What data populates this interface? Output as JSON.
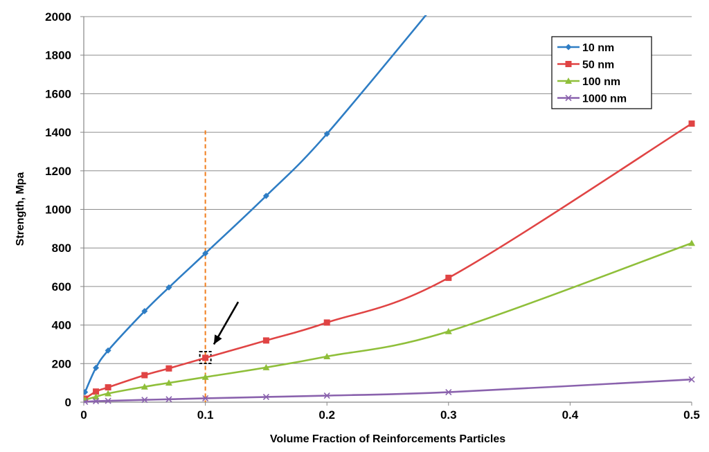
{
  "chart_data": {
    "type": "line",
    "title": "",
    "xlabel": "Volume Fraction of Reinforcements Particles",
    "ylabel": "Strength, Mpa",
    "xlim": [
      0,
      0.5
    ],
    "ylim": [
      0,
      2000
    ],
    "x_ticks": [
      0,
      0.1,
      0.2,
      0.3,
      0.4,
      0.5
    ],
    "x_tick_labels": [
      "0",
      "0.1",
      "0.2",
      "0.3",
      "0.4",
      "0.5"
    ],
    "y_ticks": [
      0,
      200,
      400,
      600,
      800,
      1000,
      1200,
      1400,
      1600,
      1800,
      2000
    ],
    "y_tick_labels": [
      "0",
      "200",
      "400",
      "600",
      "800",
      "1000",
      "1200",
      "1400",
      "1600",
      "1800",
      "2000"
    ],
    "grid": "horizontal",
    "legend_position": "top-right",
    "series": [
      {
        "name": "10 nm",
        "color": "#2e7dc4",
        "marker": "diamond",
        "x": [
          0.001,
          0.01,
          0.02,
          0.05,
          0.07,
          0.1,
          0.15,
          0.2,
          0.3
        ],
        "y": [
          52,
          178,
          268,
          472,
          595,
          772,
          1070,
          1392,
          2150
        ]
      },
      {
        "name": "50 nm",
        "color": "#e04444",
        "marker": "square",
        "x": [
          0.001,
          0.01,
          0.02,
          0.05,
          0.07,
          0.1,
          0.15,
          0.2,
          0.3,
          0.5
        ],
        "y": [
          18,
          55,
          77,
          140,
          175,
          230,
          320,
          413,
          645,
          1445
        ]
      },
      {
        "name": "100 nm",
        "color": "#8fbf3a",
        "marker": "triangle",
        "x": [
          0.001,
          0.01,
          0.02,
          0.05,
          0.07,
          0.1,
          0.15,
          0.2,
          0.3,
          0.5
        ],
        "y": [
          12,
          28,
          45,
          80,
          100,
          130,
          180,
          237,
          367,
          825
        ]
      },
      {
        "name": "1000 nm",
        "color": "#8a62ad",
        "marker": "x",
        "x": [
          0.001,
          0.01,
          0.02,
          0.05,
          0.07,
          0.1,
          0.15,
          0.2,
          0.3,
          0.5
        ],
        "y": [
          2,
          5,
          7,
          12,
          15,
          20,
          27,
          34,
          52,
          118
        ]
      }
    ],
    "annotations": {
      "vertical_line": {
        "x": 0.1,
        "y_top": 1410,
        "color": "#f07d1c",
        "style": "dashed"
      },
      "highlight_box": {
        "x": 0.1,
        "y": 230,
        "color": "#000000",
        "style": "dashed"
      },
      "arrow": {
        "from": {
          "x": 0.127,
          "y": 520
        },
        "to": {
          "x": 0.107,
          "y": 300
        },
        "color": "#000000"
      }
    }
  }
}
